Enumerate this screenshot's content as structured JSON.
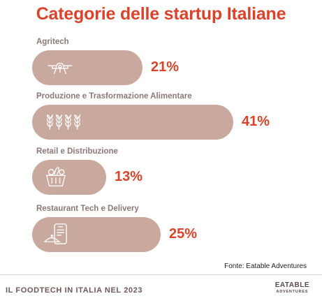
{
  "chart_data": {
    "type": "bar",
    "title": "Categorie delle startup Italiane",
    "categories": [
      "Agritech",
      "Produzione e Trasformazione Alimentare",
      "Retail e Distribuzione",
      "Restaurant Tech e Delivery"
    ],
    "values": [
      21,
      41,
      13,
      25
    ],
    "value_labels": [
      "21%",
      "41%",
      "13%",
      "25%"
    ],
    "unit": "%",
    "icons": [
      "drone-icon",
      "wheat-icon",
      "basket-icon",
      "phone-delivery-icon"
    ],
    "xlim": [
      0,
      41
    ]
  },
  "source": "Fonte: Eatable Adventures",
  "footer": {
    "left": "IL FOODTECH IN ITALIA NEL 2023",
    "brand_line1": "EATABLE",
    "brand_line2": "ADVENTURES"
  },
  "colors": {
    "accent": "#d9432b",
    "bar": "#c9a89e",
    "label": "#8a7a76"
  }
}
